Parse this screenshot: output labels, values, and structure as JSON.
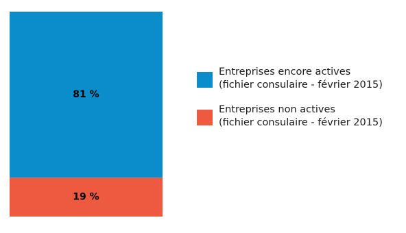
{
  "chart_data": {
    "type": "bar",
    "stacked": true,
    "categories": [
      ""
    ],
    "ylim": [
      0,
      100
    ],
    "series": [
      {
        "values": [
          19
        ],
        "label": "19 %",
        "color": "#ee5a3f",
        "legend_line1": "Entreprises non actives",
        "legend_line2": "(fichier consulaire - février 2015)"
      },
      {
        "values": [
          81
        ],
        "label": "81 %",
        "color": "#0a8dca",
        "legend_line1": "Entreprises encore actives",
        "legend_line2": "(fichier consulaire - février 2015)"
      }
    ],
    "legend_order": [
      1,
      0
    ],
    "legend_position": "right"
  }
}
